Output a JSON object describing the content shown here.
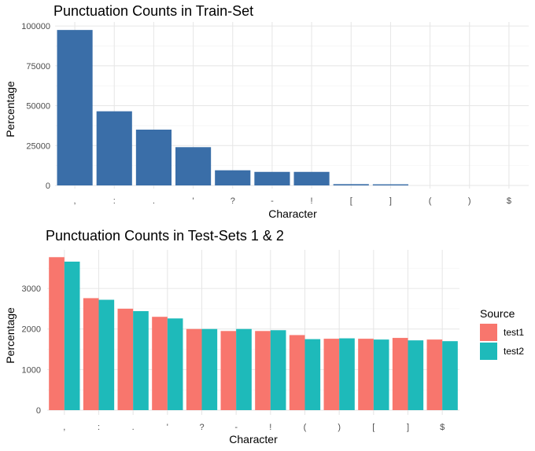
{
  "chart_data": [
    {
      "type": "bar",
      "title": "Punctuation Counts in Train-Set",
      "xlabel": "Character",
      "ylabel": "Percentage",
      "categories": [
        ",",
        ":",
        ".",
        "'",
        "?",
        "-",
        "!",
        "[",
        "]",
        "(",
        ")",
        "$"
      ],
      "values": [
        97500,
        46500,
        35000,
        24000,
        9500,
        8500,
        8500,
        800,
        700,
        0,
        0,
        0
      ],
      "yticks": [
        0,
        25000,
        50000,
        75000,
        100000
      ],
      "ylim": [
        0,
        102500
      ],
      "grid": true,
      "color": "#3A6EA8"
    },
    {
      "type": "bar",
      "title": "Punctuation Counts in Test-Sets 1 & 2",
      "xlabel": "Character",
      "ylabel": "Percentage",
      "categories": [
        ",",
        ":",
        ".",
        "'",
        "?",
        "-",
        "!",
        "(",
        ")",
        "[",
        "]",
        "$"
      ],
      "series": [
        {
          "name": "test1",
          "color": "#F8766D",
          "values": [
            3770,
            2760,
            2500,
            2300,
            2000,
            1950,
            1950,
            1850,
            1760,
            1760,
            1780,
            1740
          ]
        },
        {
          "name": "test2",
          "color": "#1EBABA",
          "values": [
            3660,
            2720,
            2440,
            2260,
            2000,
            2000,
            1970,
            1750,
            1770,
            1740,
            1720,
            1700
          ]
        }
      ],
      "yticks": [
        0,
        1000,
        2000,
        3000
      ],
      "ylim": [
        0,
        3950
      ],
      "grid": true,
      "legend": {
        "title": "Source",
        "position": "right"
      }
    }
  ]
}
